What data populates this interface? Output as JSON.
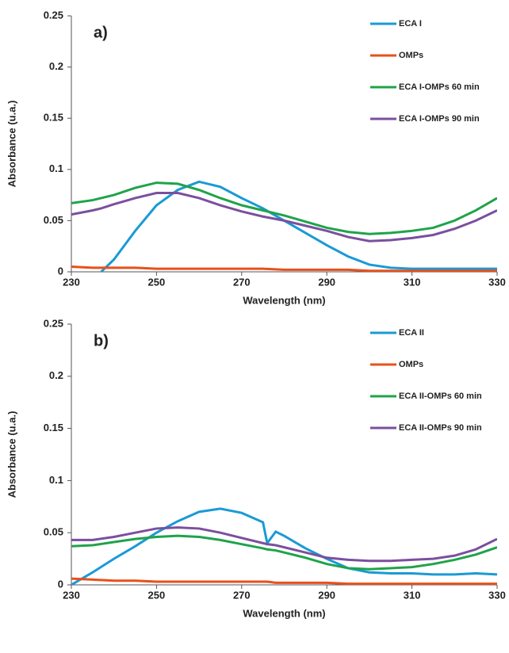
{
  "chart_data": [
    {
      "type": "line",
      "annotation": "a)",
      "x_label": "Wavelength (nm)",
      "y_label": "Absorbance (u.a.)",
      "x": [
        230,
        235,
        237,
        240,
        245,
        250,
        255,
        260,
        265,
        270,
        275,
        280,
        285,
        290,
        295,
        300,
        305,
        310,
        315,
        320,
        325,
        330
      ],
      "xlim": [
        230,
        330
      ],
      "xticks": [
        230,
        250,
        270,
        290,
        310,
        330
      ],
      "ylim": [
        0,
        0.25
      ],
      "yticks": [
        0,
        0.05,
        0.1,
        0.15,
        0.2,
        0.25
      ],
      "series": [
        {
          "name": "ECA I",
          "color": "#1a9ad6",
          "values": [
            null,
            null,
            0,
            0.012,
            0.04,
            0.065,
            0.08,
            0.088,
            0.083,
            0.072,
            0.062,
            0.05,
            0.038,
            0.026,
            0.015,
            0.007,
            0.004,
            0.003,
            0.003,
            0.003,
            0.003,
            0.003
          ]
        },
        {
          "name": "OMPs",
          "color": "#e8501c",
          "values": [
            0.005,
            0.004,
            0.004,
            0.004,
            0.004,
            0.003,
            0.003,
            0.003,
            0.003,
            0.003,
            0.003,
            0.002,
            0.002,
            0.002,
            0.002,
            0.001,
            0.001,
            0.001,
            0.001,
            0.001,
            0.001,
            0.001
          ]
        },
        {
          "name": "ECA I-OMPs 60 min",
          "color": "#1fa34a",
          "values": [
            0.067,
            0.07,
            0.072,
            0.075,
            0.082,
            0.087,
            0.086,
            0.08,
            0.072,
            0.065,
            0.06,
            0.055,
            0.049,
            0.043,
            0.039,
            0.037,
            0.038,
            0.04,
            0.043,
            0.05,
            0.06,
            0.072
          ]
        },
        {
          "name": "ECA I-OMPs 90 min",
          "color": "#7b4f9e",
          "values": [
            0.056,
            0.06,
            0.062,
            0.066,
            0.072,
            0.077,
            0.077,
            0.072,
            0.065,
            0.059,
            0.054,
            0.05,
            0.045,
            0.04,
            0.034,
            0.03,
            0.031,
            0.033,
            0.036,
            0.042,
            0.05,
            0.06
          ]
        }
      ]
    },
    {
      "type": "line",
      "annotation": "b)",
      "x_label": "Wavelength (nm)",
      "y_label": "Absorbance (u.a.)",
      "x": [
        230,
        235,
        240,
        245,
        250,
        255,
        260,
        265,
        270,
        275,
        276,
        278,
        280,
        285,
        290,
        295,
        300,
        305,
        310,
        315,
        320,
        325,
        330
      ],
      "xlim": [
        230,
        330
      ],
      "xticks": [
        230,
        250,
        270,
        290,
        310,
        330
      ],
      "ylim": [
        0,
        0.25
      ],
      "yticks": [
        0,
        0.05,
        0.1,
        0.15,
        0.2,
        0.25
      ],
      "series": [
        {
          "name": "ECA II",
          "color": "#1a9ad6",
          "values": [
            0,
            0.012,
            0.025,
            0.037,
            0.05,
            0.061,
            0.07,
            0.073,
            0.069,
            0.06,
            0.04,
            0.051,
            0.047,
            0.035,
            0.025,
            0.016,
            0.012,
            0.011,
            0.011,
            0.01,
            0.01,
            0.011,
            0.01
          ]
        },
        {
          "name": "OMPs",
          "color": "#e8501c",
          "values": [
            0.006,
            0.005,
            0.004,
            0.004,
            0.003,
            0.003,
            0.003,
            0.003,
            0.003,
            0.003,
            0.003,
            0.002,
            0.002,
            0.002,
            0.002,
            0.001,
            0.001,
            0.001,
            0.001,
            0.001,
            0.001,
            0.001,
            0.001
          ]
        },
        {
          "name": "ECA II-OMPs 60 min",
          "color": "#1fa34a",
          "values": [
            0.037,
            0.038,
            0.041,
            0.044,
            0.046,
            0.047,
            0.046,
            0.043,
            0.039,
            0.035,
            0.034,
            0.033,
            0.031,
            0.026,
            0.02,
            0.016,
            0.015,
            0.016,
            0.017,
            0.02,
            0.024,
            0.029,
            0.036
          ]
        },
        {
          "name": "ECA II-OMPs 90 min",
          "color": "#7b4f9e",
          "values": [
            0.043,
            0.043,
            0.046,
            0.05,
            0.054,
            0.055,
            0.054,
            0.05,
            0.045,
            0.04,
            0.039,
            0.038,
            0.036,
            0.031,
            0.026,
            0.024,
            0.023,
            0.023,
            0.024,
            0.025,
            0.028,
            0.034,
            0.044
          ]
        }
      ]
    }
  ]
}
